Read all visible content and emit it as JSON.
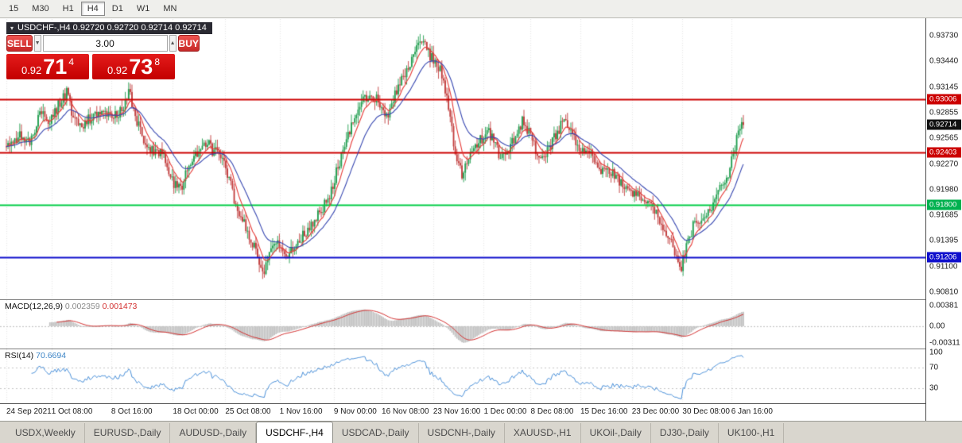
{
  "toolbar": {
    "timeframes": [
      "15",
      "M30",
      "H1",
      "H4",
      "D1",
      "W1",
      "MN"
    ],
    "active": "H4"
  },
  "trade_panel": {
    "symbol_line": "USDCHF-,H4 0.92720 0.92720 0.92714 0.92714",
    "sell_label": "SELL",
    "buy_label": "BUY",
    "lot_value": "3.00",
    "sell_price": {
      "prefix": "0.92",
      "big": "71",
      "sup": "4"
    },
    "buy_price": {
      "prefix": "0.92",
      "big": "73",
      "sup": "8"
    }
  },
  "price_axis": {
    "labels": [
      "0.93730",
      "0.93440",
      "0.93145",
      "0.92855",
      "0.92565",
      "0.92270",
      "0.91980",
      "0.91685",
      "0.91395",
      "0.91100",
      "0.90810"
    ],
    "highlights": [
      {
        "value": "0.93006",
        "price": 0.93006,
        "color": "#cc0000"
      },
      {
        "value": "0.92714",
        "price": 0.92714,
        "color": "#111111"
      },
      {
        "value": "0.92403",
        "price": 0.92403,
        "color": "#cc0000"
      },
      {
        "value": "0.91800",
        "price": 0.918,
        "color": "#00b14f"
      },
      {
        "value": "0.91206",
        "price": 0.91206,
        "color": "#0f0fcc"
      }
    ]
  },
  "chart_data": {
    "type": "candlestick",
    "symbol": "USDCHF",
    "timeframe": "H4",
    "last_close": 0.92714,
    "bar_count": 441,
    "up_color": "#1f9d4e",
    "down_color": "#c03a3a",
    "ma_fast_color": "#e53935",
    "ma_slow_color": "#3646b0",
    "y_axis": {
      "top_price": 0.9373,
      "bottom_price": 0.9081
    },
    "levels": [
      {
        "price": 0.93006,
        "color": "#cc0000"
      },
      {
        "price": 0.92403,
        "color": "#cc0000"
      },
      {
        "price": 0.918,
        "color": "#00cc44"
      },
      {
        "price": 0.91206,
        "color": "#0f0fcc"
      }
    ],
    "price_anchors": [
      [
        0,
        0.9247
      ],
      [
        8,
        0.9262
      ],
      [
        14,
        0.925
      ],
      [
        20,
        0.9286
      ],
      [
        26,
        0.9278
      ],
      [
        32,
        0.9296
      ],
      [
        36,
        0.9308
      ],
      [
        40,
        0.9282
      ],
      [
        46,
        0.927
      ],
      [
        52,
        0.9283
      ],
      [
        58,
        0.9291
      ],
      [
        64,
        0.9281
      ],
      [
        70,
        0.9289
      ],
      [
        73,
        0.931
      ],
      [
        76,
        0.9288
      ],
      [
        82,
        0.9256
      ],
      [
        88,
        0.9241
      ],
      [
        94,
        0.9235
      ],
      [
        100,
        0.9206
      ],
      [
        104,
        0.9197
      ],
      [
        108,
        0.9222
      ],
      [
        114,
        0.9238
      ],
      [
        119,
        0.9252
      ],
      [
        124,
        0.9241
      ],
      [
        130,
        0.9231
      ],
      [
        136,
        0.9187
      ],
      [
        141,
        0.9161
      ],
      [
        146,
        0.9141
      ],
      [
        151,
        0.9119
      ],
      [
        154,
        0.9106
      ],
      [
        158,
        0.9127
      ],
      [
        163,
        0.9136
      ],
      [
        167,
        0.9121
      ],
      [
        172,
        0.9129
      ],
      [
        177,
        0.9146
      ],
      [
        182,
        0.9158
      ],
      [
        188,
        0.9172
      ],
      [
        193,
        0.9191
      ],
      [
        198,
        0.9223
      ],
      [
        203,
        0.9251
      ],
      [
        208,
        0.9281
      ],
      [
        213,
        0.9301
      ],
      [
        218,
        0.9309
      ],
      [
        222,
        0.9296
      ],
      [
        226,
        0.9279
      ],
      [
        230,
        0.9293
      ],
      [
        234,
        0.9317
      ],
      [
        238,
        0.9331
      ],
      [
        243,
        0.9351
      ],
      [
        248,
        0.9371
      ],
      [
        252,
        0.9353
      ],
      [
        256,
        0.9341
      ],
      [
        260,
        0.9331
      ],
      [
        264,
        0.9289
      ],
      [
        268,
        0.9241
      ],
      [
        272,
        0.9213
      ],
      [
        276,
        0.9231
      ],
      [
        280,
        0.9249
      ],
      [
        284,
        0.9257
      ],
      [
        288,
        0.9263
      ],
      [
        292,
        0.9247
      ],
      [
        296,
        0.9233
      ],
      [
        300,
        0.9247
      ],
      [
        304,
        0.9255
      ],
      [
        308,
        0.9276
      ],
      [
        312,
        0.9263
      ],
      [
        316,
        0.9241
      ],
      [
        320,
        0.9237
      ],
      [
        324,
        0.9243
      ],
      [
        328,
        0.9259
      ],
      [
        332,
        0.9277
      ],
      [
        336,
        0.9263
      ],
      [
        340,
        0.9251
      ],
      [
        344,
        0.9246
      ],
      [
        348,
        0.9241
      ],
      [
        352,
        0.9229
      ],
      [
        356,
        0.9219
      ],
      [
        360,
        0.9216
      ],
      [
        364,
        0.9213
      ],
      [
        368,
        0.9203
      ],
      [
        372,
        0.9197
      ],
      [
        376,
        0.9191
      ],
      [
        380,
        0.9187
      ],
      [
        384,
        0.9179
      ],
      [
        388,
        0.9171
      ],
      [
        392,
        0.9156
      ],
      [
        396,
        0.9141
      ],
      [
        400,
        0.9121
      ],
      [
        403,
        0.9109
      ],
      [
        406,
        0.9131
      ],
      [
        410,
        0.9156
      ],
      [
        414,
        0.9163
      ],
      [
        418,
        0.9169
      ],
      [
        422,
        0.9181
      ],
      [
        426,
        0.9197
      ],
      [
        430,
        0.9213
      ],
      [
        433,
        0.9229
      ],
      [
        436,
        0.9253
      ],
      [
        438,
        0.9266
      ],
      [
        440,
        0.92714
      ]
    ]
  },
  "macd": {
    "label": "MACD(12,26,9)",
    "value_main": "0.002359",
    "value_signal": "0.001473",
    "axis": [
      "0.00381",
      "0.00",
      "-0.00311"
    ],
    "hist_color": "#c2c2c2",
    "signal_color": "#d32f2f"
  },
  "rsi": {
    "label": "RSI(14)",
    "value": "70.6694",
    "axis": [
      "100",
      "70",
      "30"
    ],
    "line_color": "#4a90d9",
    "levels": [
      70,
      30
    ]
  },
  "time_axis": {
    "labels": [
      "24 Sep 2021",
      "1 Oct 08:00",
      "8 Oct 16:00",
      "18 Oct 00:00",
      "25 Oct 08:00",
      "1 Nov 16:00",
      "9 Nov 00:00",
      "16 Nov 08:00",
      "23 Nov 16:00",
      "1 Dec 00:00",
      "8 Dec 08:00",
      "15 Dec 16:00",
      "23 Dec 00:00",
      "30 Dec 08:00",
      "6 Jan 16:00"
    ],
    "fractions": [
      0.0,
      0.049,
      0.114,
      0.181,
      0.238,
      0.297,
      0.356,
      0.408,
      0.464,
      0.519,
      0.57,
      0.624,
      0.68,
      0.735,
      0.788
    ]
  },
  "tabs": {
    "items": [
      "USDX,Weekly",
      "EURUSD-,Daily",
      "AUDUSD-,Daily",
      "USDCHF-,H4",
      "USDCAD-,Daily",
      "USDCNH-,Daily",
      "XAUUSD-,H1",
      "UKOil-,Daily",
      "DJ30-,Daily",
      "UK100-,H1"
    ],
    "active": "USDCHF-,H4"
  }
}
